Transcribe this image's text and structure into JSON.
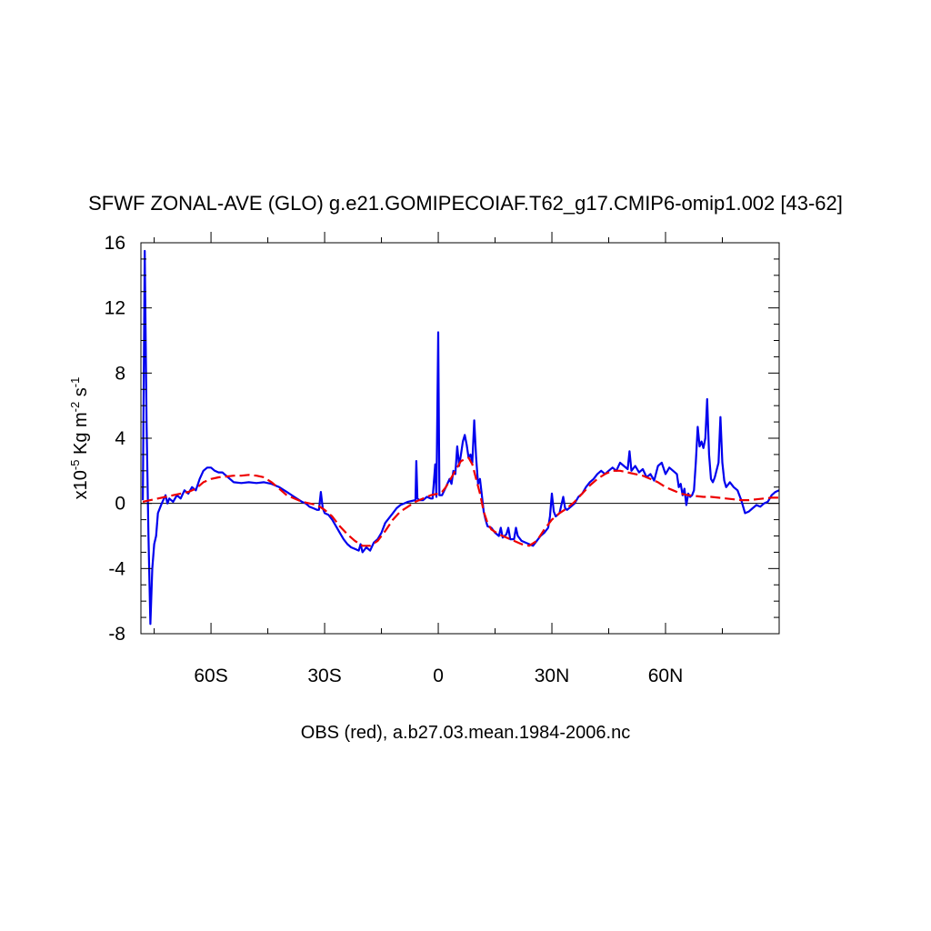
{
  "chart_data": {
    "type": "line",
    "title": "SFWF ZONAL-AVE (GLO) g.e21.GOMIPECOIAF.T62_g17.CMIP6-omip1.002 [43-62]",
    "xlabel": "OBS (red), a.b27.03.mean.1984-2006.nc",
    "ylabel": {
      "prefix": "x10",
      "exp1": "-5",
      "unit1": " Kg m",
      "exp2": "-2",
      "unit2": " s",
      "exp3": "-1"
    },
    "xlim": [
      -78.5,
      90
    ],
    "ylim": [
      -8,
      16
    ],
    "x_ticks": [
      {
        "value": -60,
        "label": "60S"
      },
      {
        "value": -30,
        "label": "30S"
      },
      {
        "value": 0,
        "label": "0"
      },
      {
        "value": 30,
        "label": "30N"
      },
      {
        "value": 60,
        "label": "60N"
      }
    ],
    "y_ticks": [
      {
        "value": -8,
        "label": "-8"
      },
      {
        "value": -4,
        "label": "-4"
      },
      {
        "value": 0,
        "label": "0"
      },
      {
        "value": 4,
        "label": "4"
      },
      {
        "value": 8,
        "label": "8"
      },
      {
        "value": 12,
        "label": "12"
      },
      {
        "value": 16,
        "label": "16"
      }
    ],
    "zero_line": true,
    "series": [
      {
        "color": "#0000ee",
        "dash": "solid",
        "points": [
          [
            -78,
            0.2
          ],
          [
            -77.5,
            15.5
          ],
          [
            -77,
            5
          ],
          [
            -76.5,
            -2
          ],
          [
            -76,
            -7.4
          ],
          [
            -75.5,
            -4
          ],
          [
            -75,
            -2.5
          ],
          [
            -74.5,
            -2
          ],
          [
            -74,
            -0.6
          ],
          [
            -73,
            0
          ],
          [
            -72,
            0.5
          ],
          [
            -71.5,
            0
          ],
          [
            -71,
            0.3
          ],
          [
            -70,
            0.1
          ],
          [
            -69,
            0.5
          ],
          [
            -68,
            0.3
          ],
          [
            -67,
            0.8
          ],
          [
            -66,
            0.6
          ],
          [
            -65,
            1.0
          ],
          [
            -64,
            0.8
          ],
          [
            -63,
            1.5
          ],
          [
            -62,
            2.0
          ],
          [
            -61,
            2.2
          ],
          [
            -60,
            2.2
          ],
          [
            -59,
            2.0
          ],
          [
            -58,
            1.9
          ],
          [
            -57,
            1.9
          ],
          [
            -56,
            1.7
          ],
          [
            -55,
            1.5
          ],
          [
            -54,
            1.3
          ],
          [
            -52,
            1.25
          ],
          [
            -50,
            1.3
          ],
          [
            -48,
            1.25
          ],
          [
            -46,
            1.3
          ],
          [
            -44,
            1.2
          ],
          [
            -42,
            1.0
          ],
          [
            -40,
            0.7
          ],
          [
            -38,
            0.4
          ],
          [
            -36,
            0.1
          ],
          [
            -35,
            0
          ],
          [
            -34,
            -0.2
          ],
          [
            -33,
            -0.3
          ],
          [
            -32,
            -0.4
          ],
          [
            -31.5,
            -0.4
          ],
          [
            -31,
            0.7
          ],
          [
            -30.5,
            -0.3
          ],
          [
            -30,
            -0.6
          ],
          [
            -29,
            -0.7
          ],
          [
            -28,
            -1.0
          ],
          [
            -27,
            -1.4
          ],
          [
            -26,
            -1.8
          ],
          [
            -25,
            -2.2
          ],
          [
            -24,
            -2.5
          ],
          [
            -23,
            -2.7
          ],
          [
            -22,
            -2.8
          ],
          [
            -21,
            -2.9
          ],
          [
            -20.5,
            -2.5
          ],
          [
            -20,
            -3.0
          ],
          [
            -19,
            -2.7
          ],
          [
            -18,
            -2.9
          ],
          [
            -17,
            -2.4
          ],
          [
            -16,
            -2.2
          ],
          [
            -15,
            -1.8
          ],
          [
            -14,
            -1.2
          ],
          [
            -13,
            -0.9
          ],
          [
            -12,
            -0.6
          ],
          [
            -11,
            -0.3
          ],
          [
            -10,
            -0.1
          ],
          [
            -9,
            0
          ],
          [
            -8,
            0.1
          ],
          [
            -7,
            0.15
          ],
          [
            -6,
            0.2
          ],
          [
            -5.8,
            2.6
          ],
          [
            -5.5,
            0.3
          ],
          [
            -5,
            0.2
          ],
          [
            -4,
            0.2
          ],
          [
            -3,
            0.4
          ],
          [
            -2,
            0.3
          ],
          [
            -1.5,
            0.3
          ],
          [
            -0.8,
            2.4
          ],
          [
            -0.5,
            0.4
          ],
          [
            0,
            10.5
          ],
          [
            0.3,
            0.5
          ],
          [
            1,
            0.5
          ],
          [
            2,
            1.0
          ],
          [
            3,
            1.5
          ],
          [
            3.5,
            1.2
          ],
          [
            4,
            2.0
          ],
          [
            4.5,
            1.8
          ],
          [
            5,
            3.5
          ],
          [
            5.5,
            2.3
          ],
          [
            6,
            3.0
          ],
          [
            6.5,
            3.8
          ],
          [
            7,
            4.2
          ],
          [
            7.5,
            3.6
          ],
          [
            8,
            2.8
          ],
          [
            8.5,
            3.0
          ],
          [
            9,
            2.5
          ],
          [
            9.5,
            5.1
          ],
          [
            10,
            2.8
          ],
          [
            10.5,
            1.2
          ],
          [
            11,
            1.5
          ],
          [
            11.5,
            0.5
          ],
          [
            12,
            -0.5
          ],
          [
            12.5,
            -1.0
          ],
          [
            13,
            -1.4
          ],
          [
            14,
            -1.5
          ],
          [
            15,
            -1.8
          ],
          [
            16,
            -2.0
          ],
          [
            16.5,
            -1.5
          ],
          [
            17,
            -2.1
          ],
          [
            18,
            -1.9
          ],
          [
            18.5,
            -1.5
          ],
          [
            19,
            -2.2
          ],
          [
            20,
            -2.2
          ],
          [
            20.5,
            -1.5
          ],
          [
            21,
            -2.0
          ],
          [
            22,
            -2.3
          ],
          [
            23,
            -2.4
          ],
          [
            24,
            -2.5
          ],
          [
            25,
            -2.6
          ],
          [
            26,
            -2.3
          ],
          [
            27,
            -2.0
          ],
          [
            28,
            -1.8
          ],
          [
            29,
            -1.5
          ],
          [
            29.5,
            -0.8
          ],
          [
            30,
            0.6
          ],
          [
            30.5,
            -0.5
          ],
          [
            31,
            -0.8
          ],
          [
            32,
            -0.6
          ],
          [
            33,
            0.4
          ],
          [
            33.5,
            -0.3
          ],
          [
            34,
            -0.4
          ],
          [
            35,
            -0.2
          ],
          [
            36,
            0
          ],
          [
            37,
            0.4
          ],
          [
            38,
            0.6
          ],
          [
            39,
            1.0
          ],
          [
            40,
            1.3
          ],
          [
            41,
            1.5
          ],
          [
            42,
            1.8
          ],
          [
            43,
            2.0
          ],
          [
            44,
            1.8
          ],
          [
            45,
            2.0
          ],
          [
            46,
            2.2
          ],
          [
            47,
            2.0
          ],
          [
            48,
            2.5
          ],
          [
            49,
            2.3
          ],
          [
            50,
            2.1
          ],
          [
            50.5,
            3.2
          ],
          [
            51,
            2.0
          ],
          [
            52,
            2.3
          ],
          [
            53,
            1.9
          ],
          [
            54,
            2.1
          ],
          [
            55,
            1.6
          ],
          [
            56,
            1.8
          ],
          [
            57,
            1.4
          ],
          [
            58,
            2.3
          ],
          [
            59,
            2.5
          ],
          [
            60,
            1.8
          ],
          [
            61,
            2.2
          ],
          [
            62,
            2.0
          ],
          [
            63,
            1.8
          ],
          [
            63.5,
            1.0
          ],
          [
            64,
            1.2
          ],
          [
            64.5,
            0.5
          ],
          [
            65,
            0.9
          ],
          [
            65.5,
            -0.1
          ],
          [
            66,
            0.6
          ],
          [
            66.5,
            0.4
          ],
          [
            67,
            0.5
          ],
          [
            67.5,
            0.8
          ],
          [
            68,
            2.5
          ],
          [
            68.5,
            4.7
          ],
          [
            69,
            3.5
          ],
          [
            69.5,
            3.8
          ],
          [
            70,
            3.4
          ],
          [
            70.5,
            4.0
          ],
          [
            71,
            6.4
          ],
          [
            71.5,
            3.0
          ],
          [
            72,
            1.5
          ],
          [
            72.5,
            1.3
          ],
          [
            73,
            1.6
          ],
          [
            74,
            2.5
          ],
          [
            74.5,
            5.3
          ],
          [
            75,
            2.5
          ],
          [
            75.5,
            1.4
          ],
          [
            76,
            1.0
          ],
          [
            77,
            1.3
          ],
          [
            78,
            1.0
          ],
          [
            79,
            0.8
          ],
          [
            80,
            0.2
          ],
          [
            80.5,
            -0.2
          ],
          [
            81,
            -0.6
          ],
          [
            82,
            -0.5
          ],
          [
            83,
            -0.3
          ],
          [
            84,
            -0.1
          ],
          [
            85,
            -0.2
          ],
          [
            86,
            0
          ],
          [
            87,
            0.1
          ],
          [
            88,
            0.5
          ],
          [
            89,
            0.7
          ],
          [
            90,
            0.8
          ]
        ]
      },
      {
        "color": "#ee0000",
        "dash": "dashed",
        "points": [
          [
            -78,
            0.1
          ],
          [
            -76,
            0.2
          ],
          [
            -74,
            0.3
          ],
          [
            -72,
            0.4
          ],
          [
            -70,
            0.5
          ],
          [
            -68,
            0.6
          ],
          [
            -66,
            0.7
          ],
          [
            -64,
            0.9
          ],
          [
            -62,
            1.3
          ],
          [
            -60,
            1.5
          ],
          [
            -58,
            1.6
          ],
          [
            -56,
            1.65
          ],
          [
            -54,
            1.7
          ],
          [
            -52,
            1.7
          ],
          [
            -50,
            1.75
          ],
          [
            -48,
            1.7
          ],
          [
            -46,
            1.6
          ],
          [
            -44,
            1.3
          ],
          [
            -42,
            0.9
          ],
          [
            -40,
            0.5
          ],
          [
            -38,
            0.3
          ],
          [
            -36,
            0.1
          ],
          [
            -34,
            0
          ],
          [
            -32,
            -0.1
          ],
          [
            -30,
            -0.4
          ],
          [
            -28,
            -0.8
          ],
          [
            -26,
            -1.4
          ],
          [
            -24,
            -1.9
          ],
          [
            -22,
            -2.3
          ],
          [
            -20,
            -2.6
          ],
          [
            -18,
            -2.6
          ],
          [
            -16,
            -2.3
          ],
          [
            -14,
            -1.7
          ],
          [
            -12,
            -1.0
          ],
          [
            -10,
            -0.5
          ],
          [
            -8,
            -0.2
          ],
          [
            -6,
            0.1
          ],
          [
            -4,
            0.3
          ],
          [
            -2,
            0.5
          ],
          [
            0,
            0.6
          ],
          [
            1,
            0.7
          ],
          [
            2,
            1.0
          ],
          [
            4,
            1.8
          ],
          [
            6,
            2.6
          ],
          [
            8,
            2.8
          ],
          [
            9,
            2.4
          ],
          [
            10,
            1.5
          ],
          [
            11,
            0.6
          ],
          [
            12,
            -0.5
          ],
          [
            13,
            -1.2
          ],
          [
            14,
            -1.6
          ],
          [
            16,
            -1.9
          ],
          [
            18,
            -2.1
          ],
          [
            20,
            -2.3
          ],
          [
            22,
            -2.5
          ],
          [
            24,
            -2.6
          ],
          [
            26,
            -2.3
          ],
          [
            28,
            -1.6
          ],
          [
            30,
            -1.0
          ],
          [
            32,
            -0.6
          ],
          [
            34,
            -0.3
          ],
          [
            36,
            0.1
          ],
          [
            38,
            0.6
          ],
          [
            40,
            1.1
          ],
          [
            42,
            1.5
          ],
          [
            44,
            1.8
          ],
          [
            46,
            2.0
          ],
          [
            48,
            2.0
          ],
          [
            50,
            1.9
          ],
          [
            52,
            1.8
          ],
          [
            54,
            1.7
          ],
          [
            56,
            1.5
          ],
          [
            58,
            1.3
          ],
          [
            60,
            1.0
          ],
          [
            62,
            0.8
          ],
          [
            64,
            0.6
          ],
          [
            66,
            0.5
          ],
          [
            68,
            0.45
          ],
          [
            70,
            0.4
          ],
          [
            72,
            0.4
          ],
          [
            74,
            0.35
          ],
          [
            76,
            0.3
          ],
          [
            78,
            0.25
          ],
          [
            80,
            0.2
          ],
          [
            82,
            0.2
          ],
          [
            84,
            0.25
          ],
          [
            86,
            0.3
          ],
          [
            88,
            0.35
          ],
          [
            90,
            0.35
          ]
        ]
      }
    ]
  }
}
